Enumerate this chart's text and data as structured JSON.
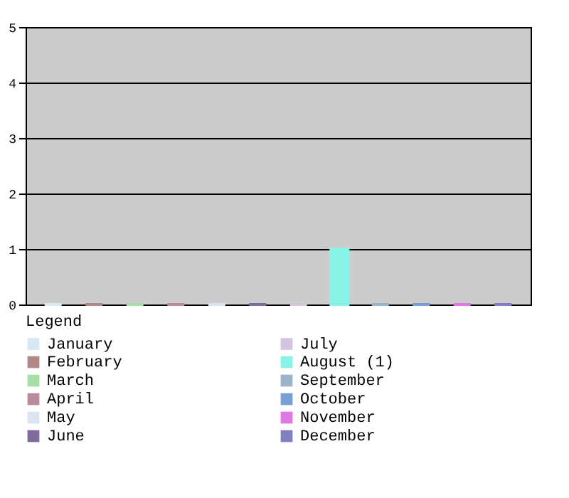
{
  "chart_data": {
    "type": "bar",
    "categories": [
      null,
      null,
      null,
      null,
      null,
      null,
      null,
      null,
      null,
      null,
      null,
      null
    ],
    "series": [
      {
        "name": "January",
        "color": "#d6e8f4",
        "values": [
          0,
          null,
          null,
          null,
          null,
          null,
          null,
          null,
          null,
          null,
          null,
          null
        ]
      },
      {
        "name": "February",
        "color": "#b08888",
        "values": [
          null,
          0,
          null,
          null,
          null,
          null,
          null,
          null,
          null,
          null,
          null,
          null
        ]
      },
      {
        "name": "March",
        "color": "#a6dea6",
        "values": [
          null,
          null,
          0,
          null,
          null,
          null,
          null,
          null,
          null,
          null,
          null,
          null
        ]
      },
      {
        "name": "April",
        "color": "#b88c9c",
        "values": [
          null,
          null,
          null,
          0,
          null,
          null,
          null,
          null,
          null,
          null,
          null,
          null
        ]
      },
      {
        "name": "May",
        "color": "#dce4f4",
        "values": [
          null,
          null,
          null,
          null,
          0,
          null,
          null,
          null,
          null,
          null,
          null,
          null
        ]
      },
      {
        "name": "June",
        "color": "#806c9c",
        "values": [
          null,
          null,
          null,
          null,
          null,
          0,
          null,
          null,
          null,
          null,
          null,
          null
        ]
      },
      {
        "name": "July",
        "color": "#d4c4e0",
        "values": [
          null,
          null,
          null,
          null,
          null,
          null,
          0,
          null,
          null,
          null,
          null,
          null
        ]
      },
      {
        "name": "August (1)",
        "color": "#88f4e8",
        "values": [
          null,
          null,
          null,
          null,
          null,
          null,
          null,
          1,
          null,
          null,
          null,
          null
        ]
      },
      {
        "name": "September",
        "color": "#9cb4c8",
        "values": [
          null,
          null,
          null,
          null,
          null,
          null,
          null,
          null,
          0,
          null,
          null,
          null
        ]
      },
      {
        "name": "October",
        "color": "#78a0d4",
        "values": [
          null,
          null,
          null,
          null,
          null,
          null,
          null,
          null,
          null,
          0,
          null,
          null
        ]
      },
      {
        "name": "November",
        "color": "#e078e4",
        "values": [
          null,
          null,
          null,
          null,
          null,
          null,
          null,
          null,
          null,
          null,
          0,
          null
        ]
      },
      {
        "name": "December",
        "color": "#8080c0",
        "values": [
          null,
          null,
          null,
          null,
          null,
          null,
          null,
          null,
          null,
          null,
          null,
          0
        ]
      }
    ],
    "ylim": [
      0,
      5
    ],
    "yticks": [
      0,
      1,
      2,
      3,
      4,
      5
    ],
    "grid": "y",
    "tick_labels": "y",
    "legend_title": "Legend",
    "legend": "bottom"
  }
}
